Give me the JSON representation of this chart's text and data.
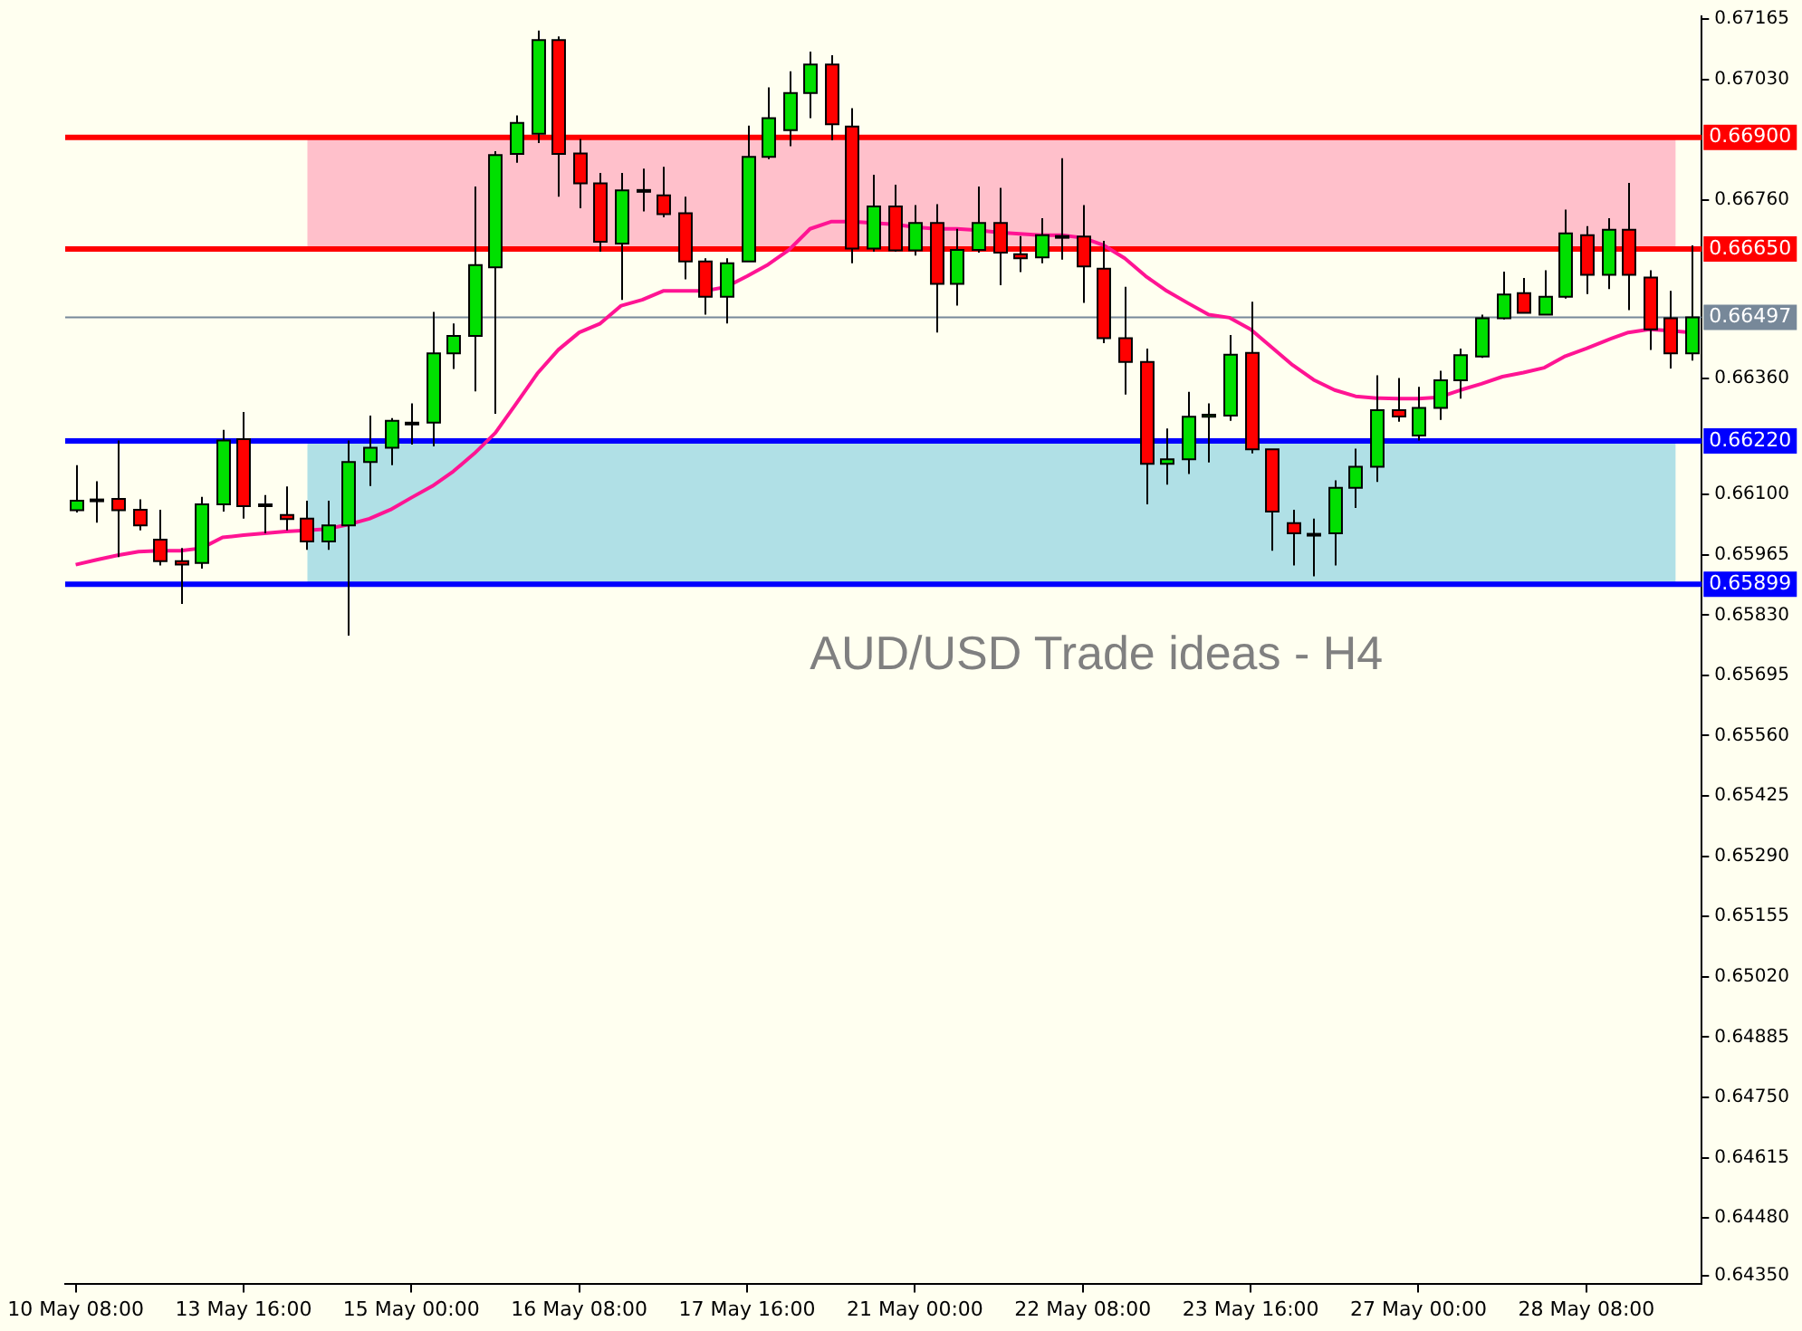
{
  "chart_data": {
    "type": "candlestick",
    "title": "AUD/USD Trade ideas - H4",
    "categories": [
      "10 May 08:00",
      null,
      null,
      null,
      null,
      null,
      null,
      null,
      "13 May 16:00",
      null,
      null,
      null,
      null,
      null,
      null,
      null,
      "15 May 00:00",
      null,
      null,
      null,
      null,
      null,
      null,
      null,
      "16 May 08:00",
      null,
      null,
      null,
      null,
      null,
      null,
      null,
      "17 May 16:00",
      null,
      null,
      null,
      null,
      null,
      null,
      null,
      "21 May 00:00",
      null,
      null,
      null,
      null,
      null,
      null,
      null,
      "22 May 08:00",
      null,
      null,
      null,
      null,
      null,
      null,
      null,
      "23 May 16:00",
      null,
      null,
      null,
      null,
      null,
      null,
      null,
      "27 May 00:00",
      null,
      null,
      null,
      null,
      null,
      null,
      null,
      "28 May 08:00",
      null,
      null,
      null,
      null,
      null
    ],
    "ohlc": [
      [
        0.66065,
        0.66166,
        0.6606,
        0.66086
      ],
      [
        0.66086,
        0.6613,
        0.66037,
        0.66089
      ],
      [
        0.6609,
        0.66221,
        0.6596,
        0.66065
      ],
      [
        0.66066,
        0.66089,
        0.6602,
        0.66031
      ],
      [
        0.65999,
        0.66066,
        0.65941,
        0.65951
      ],
      [
        0.65951,
        0.6598,
        0.65855,
        0.65943
      ],
      [
        0.65947,
        0.66095,
        0.65934,
        0.66078
      ],
      [
        0.66078,
        0.66245,
        0.66062,
        0.66221
      ],
      [
        0.66224,
        0.66285,
        0.66046,
        0.66074
      ],
      [
        0.66078,
        0.66099,
        0.66013,
        0.66076
      ],
      [
        0.66054,
        0.66118,
        0.6602,
        0.66045
      ],
      [
        0.66046,
        0.66086,
        0.65976,
        0.65995
      ],
      [
        0.65995,
        0.66086,
        0.65976,
        0.66031
      ],
      [
        0.66031,
        0.66221,
        0.65784,
        0.66173
      ],
      [
        0.66173,
        0.66277,
        0.66119,
        0.66205
      ],
      [
        0.66205,
        0.66271,
        0.66166,
        0.66265
      ],
      [
        0.66258,
        0.66304,
        0.66212,
        0.66261
      ],
      [
        0.66261,
        0.66509,
        0.66208,
        0.66416
      ],
      [
        0.66416,
        0.66483,
        0.66381,
        0.66455
      ],
      [
        0.66455,
        0.6679,
        0.66331,
        0.66614
      ],
      [
        0.66609,
        0.66869,
        0.66281,
        0.6686
      ],
      [
        0.66863,
        0.66949,
        0.66843,
        0.66932
      ],
      [
        0.66908,
        0.67139,
        0.66887,
        0.67118
      ],
      [
        0.67118,
        0.67126,
        0.66767,
        0.66863
      ],
      [
        0.66864,
        0.66896,
        0.66741,
        0.66797
      ],
      [
        0.66797,
        0.6682,
        0.66644,
        0.66666
      ],
      [
        0.66662,
        0.6682,
        0.66536,
        0.66781
      ],
      [
        0.66779,
        0.6683,
        0.66734,
        0.66782
      ],
      [
        0.6677,
        0.66834,
        0.66721,
        0.66728
      ],
      [
        0.6673,
        0.66767,
        0.66582,
        0.66622
      ],
      [
        0.66622,
        0.66629,
        0.66503,
        0.66543
      ],
      [
        0.66543,
        0.66629,
        0.66483,
        0.66618
      ],
      [
        0.66622,
        0.66926,
        0.66622,
        0.66856
      ],
      [
        0.66856,
        0.67012,
        0.66851,
        0.66943
      ],
      [
        0.66916,
        0.67048,
        0.6688,
        0.66999
      ],
      [
        0.66999,
        0.67092,
        0.66943,
        0.67063
      ],
      [
        0.67063,
        0.67084,
        0.66893,
        0.66929
      ],
      [
        0.66924,
        0.66965,
        0.66618,
        0.66651
      ],
      [
        0.66651,
        0.66816,
        0.66644,
        0.66745
      ],
      [
        0.66745,
        0.66794,
        0.66644,
        0.66647
      ],
      [
        0.66647,
        0.66748,
        0.66635,
        0.66708
      ],
      [
        0.66708,
        0.6675,
        0.66463,
        0.66572
      ],
      [
        0.66572,
        0.66695,
        0.66523,
        0.66648
      ],
      [
        0.66648,
        0.6679,
        0.66642,
        0.66708
      ],
      [
        0.66708,
        0.66787,
        0.66569,
        0.66642
      ],
      [
        0.66638,
        0.66679,
        0.66598,
        0.66629
      ],
      [
        0.66631,
        0.66719,
        0.66618,
        0.66681
      ],
      [
        0.66679,
        0.66853,
        0.66626,
        0.66676
      ],
      [
        0.66678,
        0.66748,
        0.66529,
        0.66611
      ],
      [
        0.66606,
        0.66668,
        0.66439,
        0.6645
      ],
      [
        0.6645,
        0.66565,
        0.66324,
        0.66397
      ],
      [
        0.66397,
        0.66427,
        0.66078,
        0.66169
      ],
      [
        0.66169,
        0.66248,
        0.66122,
        0.66179
      ],
      [
        0.66179,
        0.6633,
        0.66146,
        0.66274
      ],
      [
        0.66274,
        0.66304,
        0.66172,
        0.66279
      ],
      [
        0.66277,
        0.66457,
        0.66265,
        0.66413
      ],
      [
        0.66417,
        0.66532,
        0.66192,
        0.66201
      ],
      [
        0.66201,
        0.66201,
        0.65974,
        0.66062
      ],
      [
        0.66036,
        0.66066,
        0.65941,
        0.66013
      ],
      [
        0.66009,
        0.66046,
        0.65917,
        0.66012
      ],
      [
        0.66013,
        0.66132,
        0.65941,
        0.66115
      ],
      [
        0.66115,
        0.66203,
        0.6607,
        0.66162
      ],
      [
        0.66162,
        0.66367,
        0.66128,
        0.66289
      ],
      [
        0.66289,
        0.66361,
        0.66263,
        0.66275
      ],
      [
        0.66232,
        0.66341,
        0.66221,
        0.66294
      ],
      [
        0.66294,
        0.66377,
        0.66267,
        0.66356
      ],
      [
        0.66356,
        0.66427,
        0.66315,
        0.66412
      ],
      [
        0.66409,
        0.66503,
        0.66406,
        0.66495
      ],
      [
        0.66495,
        0.66599,
        0.66492,
        0.66548
      ],
      [
        0.66551,
        0.66585,
        0.66507,
        0.66507
      ],
      [
        0.66503,
        0.66602,
        0.66503,
        0.66543
      ],
      [
        0.66543,
        0.66738,
        0.66539,
        0.66685
      ],
      [
        0.66681,
        0.66701,
        0.66549,
        0.66592
      ],
      [
        0.66592,
        0.66719,
        0.6656,
        0.66693
      ],
      [
        0.66693,
        0.66798,
        0.66513,
        0.66592
      ],
      [
        0.66586,
        0.66602,
        0.66424,
        0.6647
      ],
      [
        0.66495,
        0.66556,
        0.66382,
        0.66416
      ],
      [
        0.66416,
        0.66658,
        0.664,
        0.66497
      ]
    ],
    "colors": [
      "#00e000",
      "#00e000",
      "#ff0000",
      "#ff0000",
      "#ff0000",
      "#ff0000",
      "#00e000",
      "#00e000",
      "#ff0000",
      "#ff0000",
      "#ff0000",
      "#ff0000",
      "#00e000",
      "#00e000",
      "#00e000",
      "#00e000",
      "#00e000",
      "#00e000",
      "#00e000",
      "#00e000",
      "#00e000",
      "#00e000",
      "#00e000",
      "#ff0000",
      "#ff0000",
      "#ff0000",
      "#00e000",
      "#00e000",
      "#ff0000",
      "#ff0000",
      "#ff0000",
      "#00e000",
      "#00e000",
      "#00e000",
      "#00e000",
      "#00e000",
      "#ff0000",
      "#ff0000",
      "#00e000",
      "#ff0000",
      "#00e000",
      "#ff0000",
      "#00e000",
      "#00e000",
      "#ff0000",
      "#ff0000",
      "#00e000",
      "#ff0000",
      "#ff0000",
      "#ff0000",
      "#ff0000",
      "#ff0000",
      "#00e000",
      "#00e000",
      "#00e000",
      "#00e000",
      "#ff0000",
      "#ff0000",
      "#ff0000",
      "#00e000",
      "#00e000",
      "#00e000",
      "#00e000",
      "#ff0000",
      "#00e000",
      "#00e000",
      "#00e000",
      "#00e000",
      "#00e000",
      "#ff0000",
      "#00e000",
      "#00e000",
      "#ff0000",
      "#00e000",
      "#ff0000",
      "#ff0000",
      "#ff0000",
      "#00e000"
    ],
    "series": [
      {
        "type": "line",
        "color": "#ff1493",
        "values": [
          0.65943,
          0.65954,
          0.65964,
          0.65972,
          0.65974,
          0.65974,
          0.6598,
          0.66004,
          0.66009,
          0.66013,
          0.66017,
          0.6602,
          0.66023,
          0.66033,
          0.66046,
          0.66066,
          0.66093,
          0.66119,
          0.66152,
          0.66192,
          0.66238,
          0.66304,
          0.66371,
          0.66424,
          0.66463,
          0.66483,
          0.66523,
          0.66536,
          0.66556,
          0.66556,
          0.66556,
          0.66565,
          0.66589,
          0.66615,
          0.66648,
          0.66695,
          0.66711,
          0.66711,
          0.66708,
          0.66705,
          0.66699,
          0.66695,
          0.66695,
          0.66692,
          0.66687,
          0.66684,
          0.66681,
          0.66681,
          0.66675,
          0.66658,
          0.66629,
          0.66589,
          0.66556,
          0.66529,
          0.66503,
          0.66496,
          0.6647,
          0.6643,
          0.6639,
          0.66357,
          0.66334,
          0.6632,
          0.66316,
          0.66315,
          0.66315,
          0.66318,
          0.66334,
          0.66348,
          0.66364,
          0.66373,
          0.66384,
          0.6641,
          0.66427,
          0.66446,
          0.66463,
          0.6647,
          0.66467,
          0.66463
        ]
      }
    ],
    "ylim": [
      0.64333,
      0.67171
    ],
    "yticks": [
      {
        "value": 0.67165,
        "label": "0.67165"
      },
      {
        "value": 0.6703,
        "label": "0.67030"
      },
      {
        "value": 0.6676,
        "label": "0.66760"
      },
      {
        "value": 0.6636,
        "label": "0.66360"
      },
      {
        "value": 0.661,
        "label": "0.66100"
      },
      {
        "value": 0.65965,
        "label": "0.65965"
      },
      {
        "value": 0.6583,
        "label": "0.65830"
      },
      {
        "value": 0.65695,
        "label": "0.65695"
      },
      {
        "value": 0.6556,
        "label": "0.65560"
      },
      {
        "value": 0.65425,
        "label": "0.65425"
      },
      {
        "value": 0.6529,
        "label": "0.65290"
      },
      {
        "value": 0.65155,
        "label": "0.65155"
      },
      {
        "value": 0.6502,
        "label": "0.65020"
      },
      {
        "value": 0.64885,
        "label": "0.64885"
      },
      {
        "value": 0.6475,
        "label": "0.64750"
      },
      {
        "value": 0.64615,
        "label": "0.64615"
      },
      {
        "value": 0.6448,
        "label": "0.64480"
      },
      {
        "value": 0.6435,
        "label": "0.64350"
      }
    ],
    "bands": [
      {
        "axis": "y",
        "from": 0.6665,
        "to": 0.669,
        "color": "#ffc0cb"
      },
      {
        "axis": "y",
        "from": 0.65899,
        "to": 0.6622,
        "color": "#b0e0e6"
      }
    ],
    "ref_lines": [
      {
        "axis": "y",
        "value": 0.669,
        "label": "0.66900",
        "color": "#ff0000"
      },
      {
        "axis": "y",
        "value": 0.6665,
        "label": "0.66650",
        "color": "#ff0000"
      },
      {
        "axis": "y",
        "value": 0.66497,
        "label": "0.66497",
        "color": "#778899"
      },
      {
        "axis": "y",
        "value": 0.6622,
        "label": "0.66220",
        "color": "#0000ff"
      },
      {
        "axis": "y",
        "value": 0.65899,
        "label": "0.65899",
        "color": "#0000ff"
      }
    ]
  }
}
